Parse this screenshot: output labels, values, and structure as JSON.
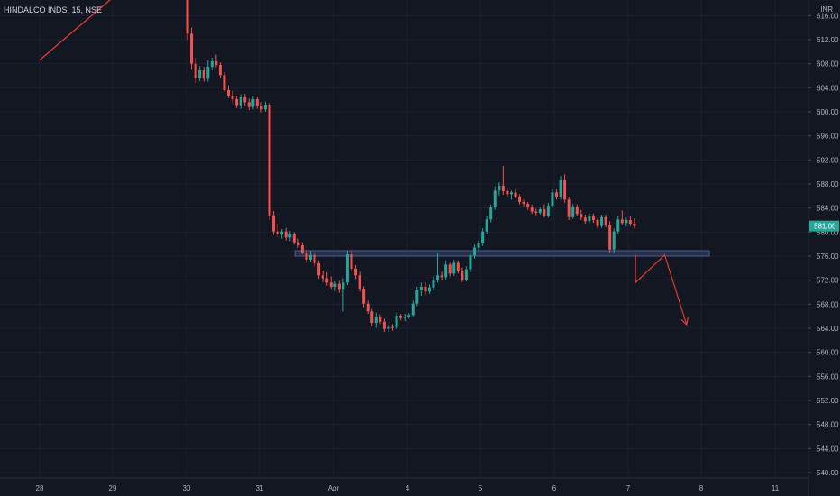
{
  "header": {
    "symbol": "HINDALCO INDS, 15, NSE",
    "currency": "INR"
  },
  "colors": {
    "background": "#131722",
    "up": "#26a69a",
    "down": "#ef5350",
    "drawing": "#e53935",
    "zone_fill": "#2a3553",
    "zone_border": "#4a5e94",
    "last_price_bg": "#26a69a",
    "axis_text": "#b2b5be"
  },
  "chart_data": {
    "type": "candlestick",
    "title": "HINDALCO INDS, 15, NSE",
    "currency": "INR",
    "y_ticks": [
      540,
      544,
      548,
      552,
      556,
      560,
      564,
      568,
      572,
      576,
      580,
      584,
      588,
      592,
      596,
      600,
      604,
      608,
      612,
      616
    ],
    "y_tick_labels": [
      "540.00",
      "544.00",
      "548.00",
      "552.00",
      "556.00",
      "560.00",
      "564.00",
      "568.00",
      "572.00",
      "576.00",
      "580.00",
      "584.00",
      "588.00",
      "592.00",
      "596.00",
      "600.00",
      "604.00",
      "608.00",
      "612.00",
      "616.00"
    ],
    "x_tick_labels": [
      "28",
      "29",
      "30",
      "31",
      "Apr",
      "4",
      "5",
      "6",
      "7",
      "8",
      "11"
    ],
    "ylim": [
      539.1,
      618.6
    ],
    "last_price": "581.00",
    "last_price_value": 581.0,
    "support_zone": {
      "low": 576.0,
      "high": 576.9
    },
    "trend_line": {
      "from": {
        "x": "28",
        "price": 608.6
      },
      "to": {
        "x": "29",
        "price": 619.0
      }
    },
    "projection_path": [
      {
        "x": "7.1",
        "price": 576.2
      },
      {
        "x": "7.1",
        "price": 571.6
      },
      {
        "x": "7.5",
        "price": 576.2
      },
      {
        "x": "7.8",
        "price": 564.6
      }
    ],
    "candles": [
      {
        "o": 622,
        "h": 624,
        "l": 612,
        "c": 613
      },
      {
        "o": 613,
        "h": 614,
        "l": 607,
        "c": 608
      },
      {
        "o": 608,
        "h": 609,
        "l": 604.8,
        "c": 605.6
      },
      {
        "o": 605.6,
        "h": 607.6,
        "l": 605.1,
        "c": 606.9
      },
      {
        "o": 606.9,
        "h": 607.5,
        "l": 605,
        "c": 605.5
      },
      {
        "o": 605.5,
        "h": 608.6,
        "l": 605,
        "c": 607.5
      },
      {
        "o": 607.5,
        "h": 609,
        "l": 606.9,
        "c": 608.4
      },
      {
        "o": 608.4,
        "h": 609.5,
        "l": 607.4,
        "c": 607.8
      },
      {
        "o": 607.8,
        "h": 608.2,
        "l": 605.6,
        "c": 606.1
      },
      {
        "o": 606.1,
        "h": 606.6,
        "l": 603.4,
        "c": 603.6
      },
      {
        "o": 603.6,
        "h": 604.4,
        "l": 602.3,
        "c": 602.7
      },
      {
        "o": 602.7,
        "h": 603.5,
        "l": 601.6,
        "c": 602.1
      },
      {
        "o": 602.1,
        "h": 602.6,
        "l": 600.6,
        "c": 601.1
      },
      {
        "o": 601.1,
        "h": 602.9,
        "l": 600.5,
        "c": 602.4
      },
      {
        "o": 602.4,
        "h": 603.0,
        "l": 601.0,
        "c": 601.6
      },
      {
        "o": 601.6,
        "h": 602.2,
        "l": 600.3,
        "c": 600.8
      },
      {
        "o": 600.8,
        "h": 602.6,
        "l": 600.4,
        "c": 602.1
      },
      {
        "o": 602.1,
        "h": 602.4,
        "l": 600.5,
        "c": 601.0
      },
      {
        "o": 601.0,
        "h": 601.6,
        "l": 599.9,
        "c": 600.4
      },
      {
        "o": 600.4,
        "h": 601.7,
        "l": 600.0,
        "c": 601.2
      },
      {
        "o": 601.2,
        "h": 601.5,
        "l": 582.0,
        "c": 582.8
      },
      {
        "o": 582.8,
        "h": 583.5,
        "l": 579.5,
        "c": 580.1
      },
      {
        "o": 580.1,
        "h": 581.4,
        "l": 579.2,
        "c": 579.6
      },
      {
        "o": 579.6,
        "h": 580.5,
        "l": 578.9,
        "c": 580.1
      },
      {
        "o": 580.1,
        "h": 580.7,
        "l": 578.6,
        "c": 579.1
      },
      {
        "o": 579.1,
        "h": 580.2,
        "l": 578.5,
        "c": 579.7
      },
      {
        "o": 579.7,
        "h": 580.0,
        "l": 577.9,
        "c": 578.3
      },
      {
        "o": 578.3,
        "h": 578.9,
        "l": 577.4,
        "c": 577.8
      },
      {
        "o": 577.8,
        "h": 578.3,
        "l": 576.3,
        "c": 576.6
      },
      {
        "o": 576.6,
        "h": 577.0,
        "l": 574.9,
        "c": 575.4
      },
      {
        "o": 575.4,
        "h": 576.9,
        "l": 575.0,
        "c": 576.2
      },
      {
        "o": 576.2,
        "h": 576.6,
        "l": 574.3,
        "c": 574.8
      },
      {
        "o": 574.8,
        "h": 575.3,
        "l": 572.2,
        "c": 572.8
      },
      {
        "o": 572.8,
        "h": 573.6,
        "l": 571.7,
        "c": 572.3
      },
      {
        "o": 572.3,
        "h": 573.3,
        "l": 571.1,
        "c": 571.6
      },
      {
        "o": 571.6,
        "h": 572.6,
        "l": 570.4,
        "c": 570.9
      },
      {
        "o": 570.9,
        "h": 571.8,
        "l": 570.2,
        "c": 571.4
      },
      {
        "o": 571.4,
        "h": 571.9,
        "l": 569.9,
        "c": 570.4
      },
      {
        "o": 570.4,
        "h": 572.3,
        "l": 566.8,
        "c": 571.6
      },
      {
        "o": 571.6,
        "h": 576.9,
        "l": 571.2,
        "c": 576.3
      },
      {
        "o": 576.3,
        "h": 576.9,
        "l": 573.4,
        "c": 573.9
      },
      {
        "o": 573.9,
        "h": 574.5,
        "l": 572.2,
        "c": 572.8
      },
      {
        "o": 572.8,
        "h": 573.4,
        "l": 570.1,
        "c": 570.6
      },
      {
        "o": 570.6,
        "h": 571.0,
        "l": 567.5,
        "c": 568.1
      },
      {
        "o": 568.1,
        "h": 568.6,
        "l": 566.4,
        "c": 566.8
      },
      {
        "o": 566.8,
        "h": 567.2,
        "l": 564.4,
        "c": 564.9
      },
      {
        "o": 564.9,
        "h": 566.6,
        "l": 564.1,
        "c": 565.9
      },
      {
        "o": 565.9,
        "h": 566.3,
        "l": 564.7,
        "c": 565.1
      },
      {
        "o": 565.1,
        "h": 565.6,
        "l": 563.4,
        "c": 563.9
      },
      {
        "o": 563.9,
        "h": 564.6,
        "l": 563.4,
        "c": 564.2
      },
      {
        "o": 564.2,
        "h": 564.7,
        "l": 563.6,
        "c": 564.1
      },
      {
        "o": 564.1,
        "h": 566.6,
        "l": 563.8,
        "c": 566.1
      },
      {
        "o": 566.1,
        "h": 566.4,
        "l": 565.3,
        "c": 565.7
      },
      {
        "o": 565.7,
        "h": 566.4,
        "l": 565.2,
        "c": 565.9
      },
      {
        "o": 565.9,
        "h": 566.5,
        "l": 565.6,
        "c": 566.2
      },
      {
        "o": 566.2,
        "h": 568.6,
        "l": 565.9,
        "c": 568.1
      },
      {
        "o": 568.1,
        "h": 570.9,
        "l": 567.7,
        "c": 570.3
      },
      {
        "o": 570.3,
        "h": 571.6,
        "l": 569.4,
        "c": 570.9
      },
      {
        "o": 570.9,
        "h": 571.7,
        "l": 569.5,
        "c": 570.1
      },
      {
        "o": 570.1,
        "h": 571.3,
        "l": 569.7,
        "c": 570.8
      },
      {
        "o": 570.8,
        "h": 572.6,
        "l": 570.3,
        "c": 572.1
      },
      {
        "o": 572.1,
        "h": 576.6,
        "l": 571.6,
        "c": 572.8
      },
      {
        "o": 572.8,
        "h": 573.4,
        "l": 572.0,
        "c": 572.5
      },
      {
        "o": 572.5,
        "h": 575.3,
        "l": 572.1,
        "c": 574.6
      },
      {
        "o": 574.6,
        "h": 574.9,
        "l": 572.6,
        "c": 573.1
      },
      {
        "o": 573.1,
        "h": 575.4,
        "l": 572.7,
        "c": 574.9
      },
      {
        "o": 574.9,
        "h": 575.3,
        "l": 573.1,
        "c": 573.6
      },
      {
        "o": 573.6,
        "h": 574.1,
        "l": 571.7,
        "c": 572.1
      },
      {
        "o": 572.1,
        "h": 574.3,
        "l": 571.8,
        "c": 573.8
      },
      {
        "o": 573.8,
        "h": 576.6,
        "l": 573.3,
        "c": 576.1
      },
      {
        "o": 576.1,
        "h": 577.9,
        "l": 575.6,
        "c": 577.4
      },
      {
        "o": 577.4,
        "h": 578.6,
        "l": 577.0,
        "c": 578.1
      },
      {
        "o": 578.1,
        "h": 580.6,
        "l": 577.7,
        "c": 580.1
      },
      {
        "o": 580.1,
        "h": 582.6,
        "l": 579.7,
        "c": 582.1
      },
      {
        "o": 582.1,
        "h": 584.6,
        "l": 581.6,
        "c": 584.1
      },
      {
        "o": 584.1,
        "h": 587.6,
        "l": 583.7,
        "c": 586.9
      },
      {
        "o": 586.9,
        "h": 588.3,
        "l": 586.1,
        "c": 587.7
      },
      {
        "o": 587.7,
        "h": 591.0,
        "l": 586.2,
        "c": 586.8
      },
      {
        "o": 586.8,
        "h": 587.2,
        "l": 585.8,
        "c": 586.3
      },
      {
        "o": 586.3,
        "h": 586.9,
        "l": 585.4,
        "c": 586.6
      },
      {
        "o": 586.6,
        "h": 587.2,
        "l": 585.6,
        "c": 585.9
      },
      {
        "o": 585.9,
        "h": 586.3,
        "l": 584.6,
        "c": 585.0
      },
      {
        "o": 585.0,
        "h": 585.4,
        "l": 584.3,
        "c": 584.7
      },
      {
        "o": 584.7,
        "h": 585.0,
        "l": 583.7,
        "c": 584.1
      },
      {
        "o": 584.1,
        "h": 584.6,
        "l": 583.0,
        "c": 583.4
      },
      {
        "o": 583.4,
        "h": 583.9,
        "l": 582.8,
        "c": 583.2
      },
      {
        "o": 583.2,
        "h": 584.1,
        "l": 582.9,
        "c": 583.8
      },
      {
        "o": 583.8,
        "h": 584.6,
        "l": 582.4,
        "c": 582.7
      },
      {
        "o": 582.7,
        "h": 584.9,
        "l": 582.4,
        "c": 584.4
      },
      {
        "o": 584.4,
        "h": 587.1,
        "l": 584.0,
        "c": 586.6
      },
      {
        "o": 586.6,
        "h": 587.1,
        "l": 585.4,
        "c": 585.8
      },
      {
        "o": 585.8,
        "h": 589.3,
        "l": 585.4,
        "c": 588.6
      },
      {
        "o": 588.6,
        "h": 589.6,
        "l": 584.9,
        "c": 585.4
      },
      {
        "o": 585.4,
        "h": 585.8,
        "l": 582.0,
        "c": 582.5
      },
      {
        "o": 582.5,
        "h": 584.7,
        "l": 582.2,
        "c": 584.2
      },
      {
        "o": 584.2,
        "h": 584.6,
        "l": 582.6,
        "c": 583.0
      },
      {
        "o": 583.0,
        "h": 583.7,
        "l": 582.0,
        "c": 582.4
      },
      {
        "o": 582.4,
        "h": 582.9,
        "l": 581.4,
        "c": 581.8
      },
      {
        "o": 581.8,
        "h": 583.1,
        "l": 581.5,
        "c": 582.6
      },
      {
        "o": 582.6,
        "h": 583.1,
        "l": 581.5,
        "c": 582.0
      },
      {
        "o": 582.0,
        "h": 582.4,
        "l": 580.6,
        "c": 581.0
      },
      {
        "o": 581.0,
        "h": 582.9,
        "l": 580.7,
        "c": 582.5
      },
      {
        "o": 582.5,
        "h": 582.9,
        "l": 580.8,
        "c": 581.2
      },
      {
        "o": 581.2,
        "h": 581.8,
        "l": 576.6,
        "c": 577.1
      },
      {
        "o": 577.1,
        "h": 580.6,
        "l": 576.5,
        "c": 580.1
      },
      {
        "o": 580.1,
        "h": 582.6,
        "l": 579.7,
        "c": 582.1
      },
      {
        "o": 582.1,
        "h": 583.6,
        "l": 581.2,
        "c": 581.5
      },
      {
        "o": 581.5,
        "h": 582.4,
        "l": 580.9,
        "c": 582.0
      },
      {
        "o": 582.0,
        "h": 582.6,
        "l": 581.0,
        "c": 581.4
      },
      {
        "o": 581.4,
        "h": 582.3,
        "l": 580.6,
        "c": 581.0
      }
    ]
  }
}
